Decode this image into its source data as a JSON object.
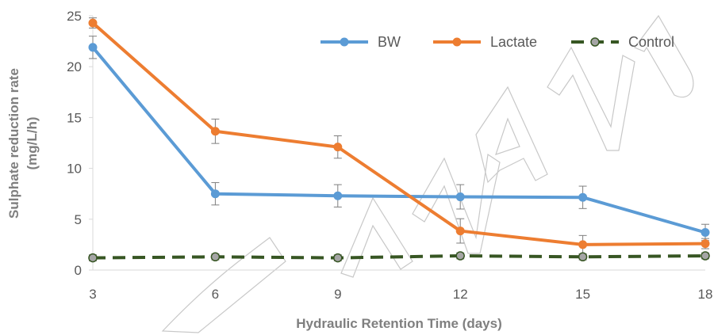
{
  "chart_data": {
    "type": "line",
    "title": "",
    "xlabel": "Hydraulic Retention Time (days)",
    "ylabel_line1": "Sulphate reduction rate",
    "ylabel_line2": "(mg/L/h)",
    "x": [
      3,
      6,
      9,
      12,
      15,
      18
    ],
    "x_ticks": [
      "3",
      "6",
      "9",
      "12",
      "15",
      "18"
    ],
    "xlim": [
      3,
      18
    ],
    "y_ticks": [
      "0",
      "5",
      "10",
      "15",
      "20",
      "25"
    ],
    "ylim": [
      0,
      25
    ],
    "grid": false,
    "legend_position": "top",
    "series": [
      {
        "name": "BW",
        "color": "#5b9bd5",
        "style": "solid",
        "values": [
          21.9,
          7.5,
          7.3,
          7.2,
          7.15,
          3.7
        ],
        "errors": [
          1.1,
          1.1,
          1.1,
          1.2,
          1.1,
          0.8
        ]
      },
      {
        "name": "Lactate",
        "color": "#ed7d31",
        "style": "solid",
        "values": [
          24.3,
          13.65,
          12.1,
          3.85,
          2.5,
          2.6
        ],
        "errors": [
          0.5,
          1.2,
          1.1,
          1.2,
          0.9,
          0.5
        ]
      },
      {
        "name": "Control",
        "color": "#375623",
        "marker_color": "#a5a5a5",
        "style": "dashed",
        "values": [
          1.2,
          1.3,
          1.2,
          1.4,
          1.3,
          1.4
        ],
        "errors": [
          0.3,
          0.3,
          0.3,
          0.3,
          0.3,
          0.3
        ]
      }
    ]
  }
}
